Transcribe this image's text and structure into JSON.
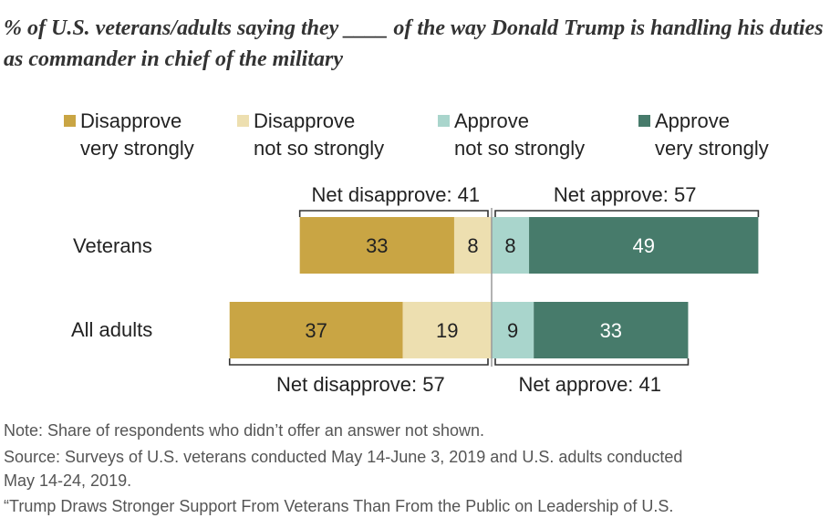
{
  "title": "% of U.S. veterans/adults saying they ____ of the way Donald Trump is handling his duties as commander in chief of the military",
  "chart_data": {
    "type": "bar",
    "orientation": "horizontal-diverging",
    "categories": [
      "Veterans",
      "All adults"
    ],
    "series": [
      {
        "name": "Disapprove very strongly",
        "values": [
          33,
          37
        ],
        "color": "#C9A544",
        "side": "disapprove"
      },
      {
        "name": "Disapprove not so strongly",
        "values": [
          8,
          19
        ],
        "color": "#EDDFB0",
        "side": "disapprove"
      },
      {
        "name": "Approve not so strongly",
        "values": [
          8,
          9
        ],
        "color": "#A9D5CC",
        "side": "approve"
      },
      {
        "name": "Approve very strongly",
        "values": [
          49,
          33
        ],
        "color": "#477B6B",
        "side": "approve"
      }
    ],
    "net": [
      {
        "disapprove_label": "Net disapprove: 41",
        "approve_label": "Net approve: 57",
        "placement": "above"
      },
      {
        "disapprove_label": "Net disapprove: 57",
        "approve_label": "Net approve: 41",
        "placement": "below"
      }
    ],
    "legend_position": "top",
    "grid": false
  },
  "legend": [
    {
      "label": "Disapprove\nvery strongly",
      "color": "#C9A544"
    },
    {
      "label": "Disapprove\nnot so strongly",
      "color": "#EDDFB0"
    },
    {
      "label": "Approve\nnot so strongly",
      "color": "#A9D5CC"
    },
    {
      "label": "Approve\nvery strongly",
      "color": "#477B6B"
    }
  ],
  "notes": {
    "note": "Note: Share of respondents who didn’t offer an answer not shown.",
    "source_line1": "Source: Surveys of U.S. veterans conducted May 14-June 3, 2019 and U.S. adults conducted",
    "source_line2": "May 14-24, 2019.",
    "report": "“Trump Draws Stronger Support From Veterans Than From the Public on Leadership of U.S."
  }
}
